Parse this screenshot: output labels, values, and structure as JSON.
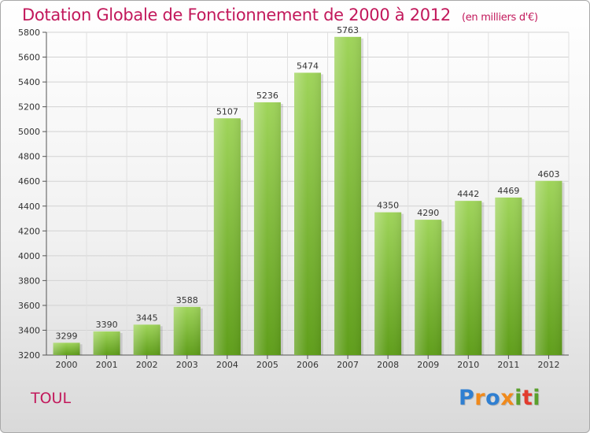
{
  "title": "Dotation Globale de Fonctionnement de 2000 à 2012",
  "subtitle": "(en milliers d'€)",
  "commune": "TOUL",
  "logo": {
    "letters": [
      "P",
      "r",
      "o",
      "x",
      "i",
      "t",
      "i"
    ],
    "colors": [
      "#2f7fd1",
      "#f08a1c",
      "#2f7fd1",
      "#f08a1c",
      "#5aa02c",
      "#e23b2e",
      "#5aa02c"
    ]
  },
  "chart_data": {
    "type": "bar",
    "categories": [
      "2000",
      "2001",
      "2002",
      "2003",
      "2004",
      "2005",
      "2006",
      "2007",
      "2008",
      "2009",
      "2010",
      "2011",
      "2012"
    ],
    "values": [
      3299,
      3390,
      3445,
      3588,
      5107,
      5236,
      5474,
      5763,
      4350,
      4290,
      4442,
      4469,
      4603
    ],
    "ylim": [
      3200,
      5800
    ],
    "yticks": [
      3200,
      3400,
      3600,
      3800,
      4000,
      4200,
      4400,
      4600,
      4800,
      5000,
      5200,
      5400,
      5600,
      5800
    ],
    "grid": true,
    "bar_color": "#8cc63f"
  }
}
